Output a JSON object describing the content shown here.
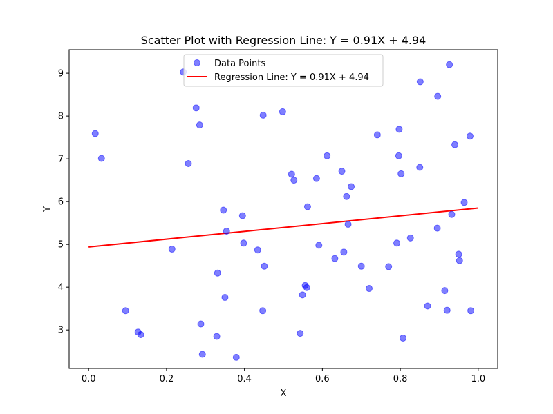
{
  "chart_data": {
    "type": "scatter",
    "title": "Scatter Plot with Regression Line: Y = 0.91X + 4.94",
    "xlabel": "X",
    "ylabel": "Y",
    "xlim": [
      -0.05,
      1.05
    ],
    "ylim": [
      2.1,
      9.55
    ],
    "xticks": [
      0.0,
      0.2,
      0.4,
      0.6,
      0.8,
      1.0
    ],
    "xtick_labels": [
      "0.0",
      "0.2",
      "0.4",
      "0.6",
      "0.8",
      "1.0"
    ],
    "yticks": [
      3,
      4,
      5,
      6,
      7,
      8,
      9
    ],
    "ytick_labels": [
      "3",
      "4",
      "5",
      "6",
      "7",
      "8",
      "9"
    ],
    "grid": false,
    "legend_position": "upper-center",
    "series": [
      {
        "name": "Data Points",
        "kind": "scatter",
        "color": "#0000ff",
        "opacity": 0.5,
        "points": [
          [
            0.017,
            7.59
          ],
          [
            0.033,
            7.01
          ],
          [
            0.095,
            3.45
          ],
          [
            0.127,
            2.95
          ],
          [
            0.134,
            2.89
          ],
          [
            0.214,
            4.89
          ],
          [
            0.243,
            9.03
          ],
          [
            0.256,
            6.89
          ],
          [
            0.276,
            8.19
          ],
          [
            0.285,
            7.79
          ],
          [
            0.288,
            3.14
          ],
          [
            0.292,
            2.43
          ],
          [
            0.329,
            2.85
          ],
          [
            0.331,
            4.33
          ],
          [
            0.346,
            5.8
          ],
          [
            0.35,
            3.76
          ],
          [
            0.354,
            5.31
          ],
          [
            0.379,
            2.36
          ],
          [
            0.395,
            5.67
          ],
          [
            0.398,
            5.03
          ],
          [
            0.434,
            4.87
          ],
          [
            0.447,
            3.45
          ],
          [
            0.448,
            8.02
          ],
          [
            0.451,
            4.49
          ],
          [
            0.498,
            8.1
          ],
          [
            0.521,
            6.64
          ],
          [
            0.527,
            6.5
          ],
          [
            0.543,
            2.92
          ],
          [
            0.549,
            3.82
          ],
          [
            0.556,
            4.04
          ],
          [
            0.56,
            3.99
          ],
          [
            0.562,
            5.88
          ],
          [
            0.585,
            6.54
          ],
          [
            0.591,
            4.98
          ],
          [
            0.612,
            7.07
          ],
          [
            0.632,
            4.67
          ],
          [
            0.65,
            6.71
          ],
          [
            0.655,
            4.82
          ],
          [
            0.662,
            6.12
          ],
          [
            0.666,
            5.47
          ],
          [
            0.674,
            6.35
          ],
          [
            0.7,
            4.49
          ],
          [
            0.72,
            3.97
          ],
          [
            0.741,
            7.56
          ],
          [
            0.77,
            4.48
          ],
          [
            0.791,
            5.03
          ],
          [
            0.796,
            7.07
          ],
          [
            0.797,
            7.69
          ],
          [
            0.802,
            6.65
          ],
          [
            0.807,
            2.81
          ],
          [
            0.826,
            5.15
          ],
          [
            0.85,
            6.8
          ],
          [
            0.851,
            8.8
          ],
          [
            0.87,
            3.56
          ],
          [
            0.895,
            5.38
          ],
          [
            0.896,
            8.46
          ],
          [
            0.914,
            3.92
          ],
          [
            0.92,
            3.46
          ],
          [
            0.926,
            9.2
          ],
          [
            0.932,
            5.7
          ],
          [
            0.94,
            7.33
          ],
          [
            0.95,
            4.77
          ],
          [
            0.952,
            4.62
          ],
          [
            0.964,
            5.98
          ],
          [
            0.979,
            7.53
          ],
          [
            0.981,
            3.45
          ]
        ]
      },
      {
        "name": "Regression Line: Y = 0.91X + 4.94",
        "kind": "line",
        "color": "#ff0000",
        "points": [
          [
            0.0,
            4.94
          ],
          [
            1.0,
            5.85
          ]
        ]
      }
    ]
  }
}
